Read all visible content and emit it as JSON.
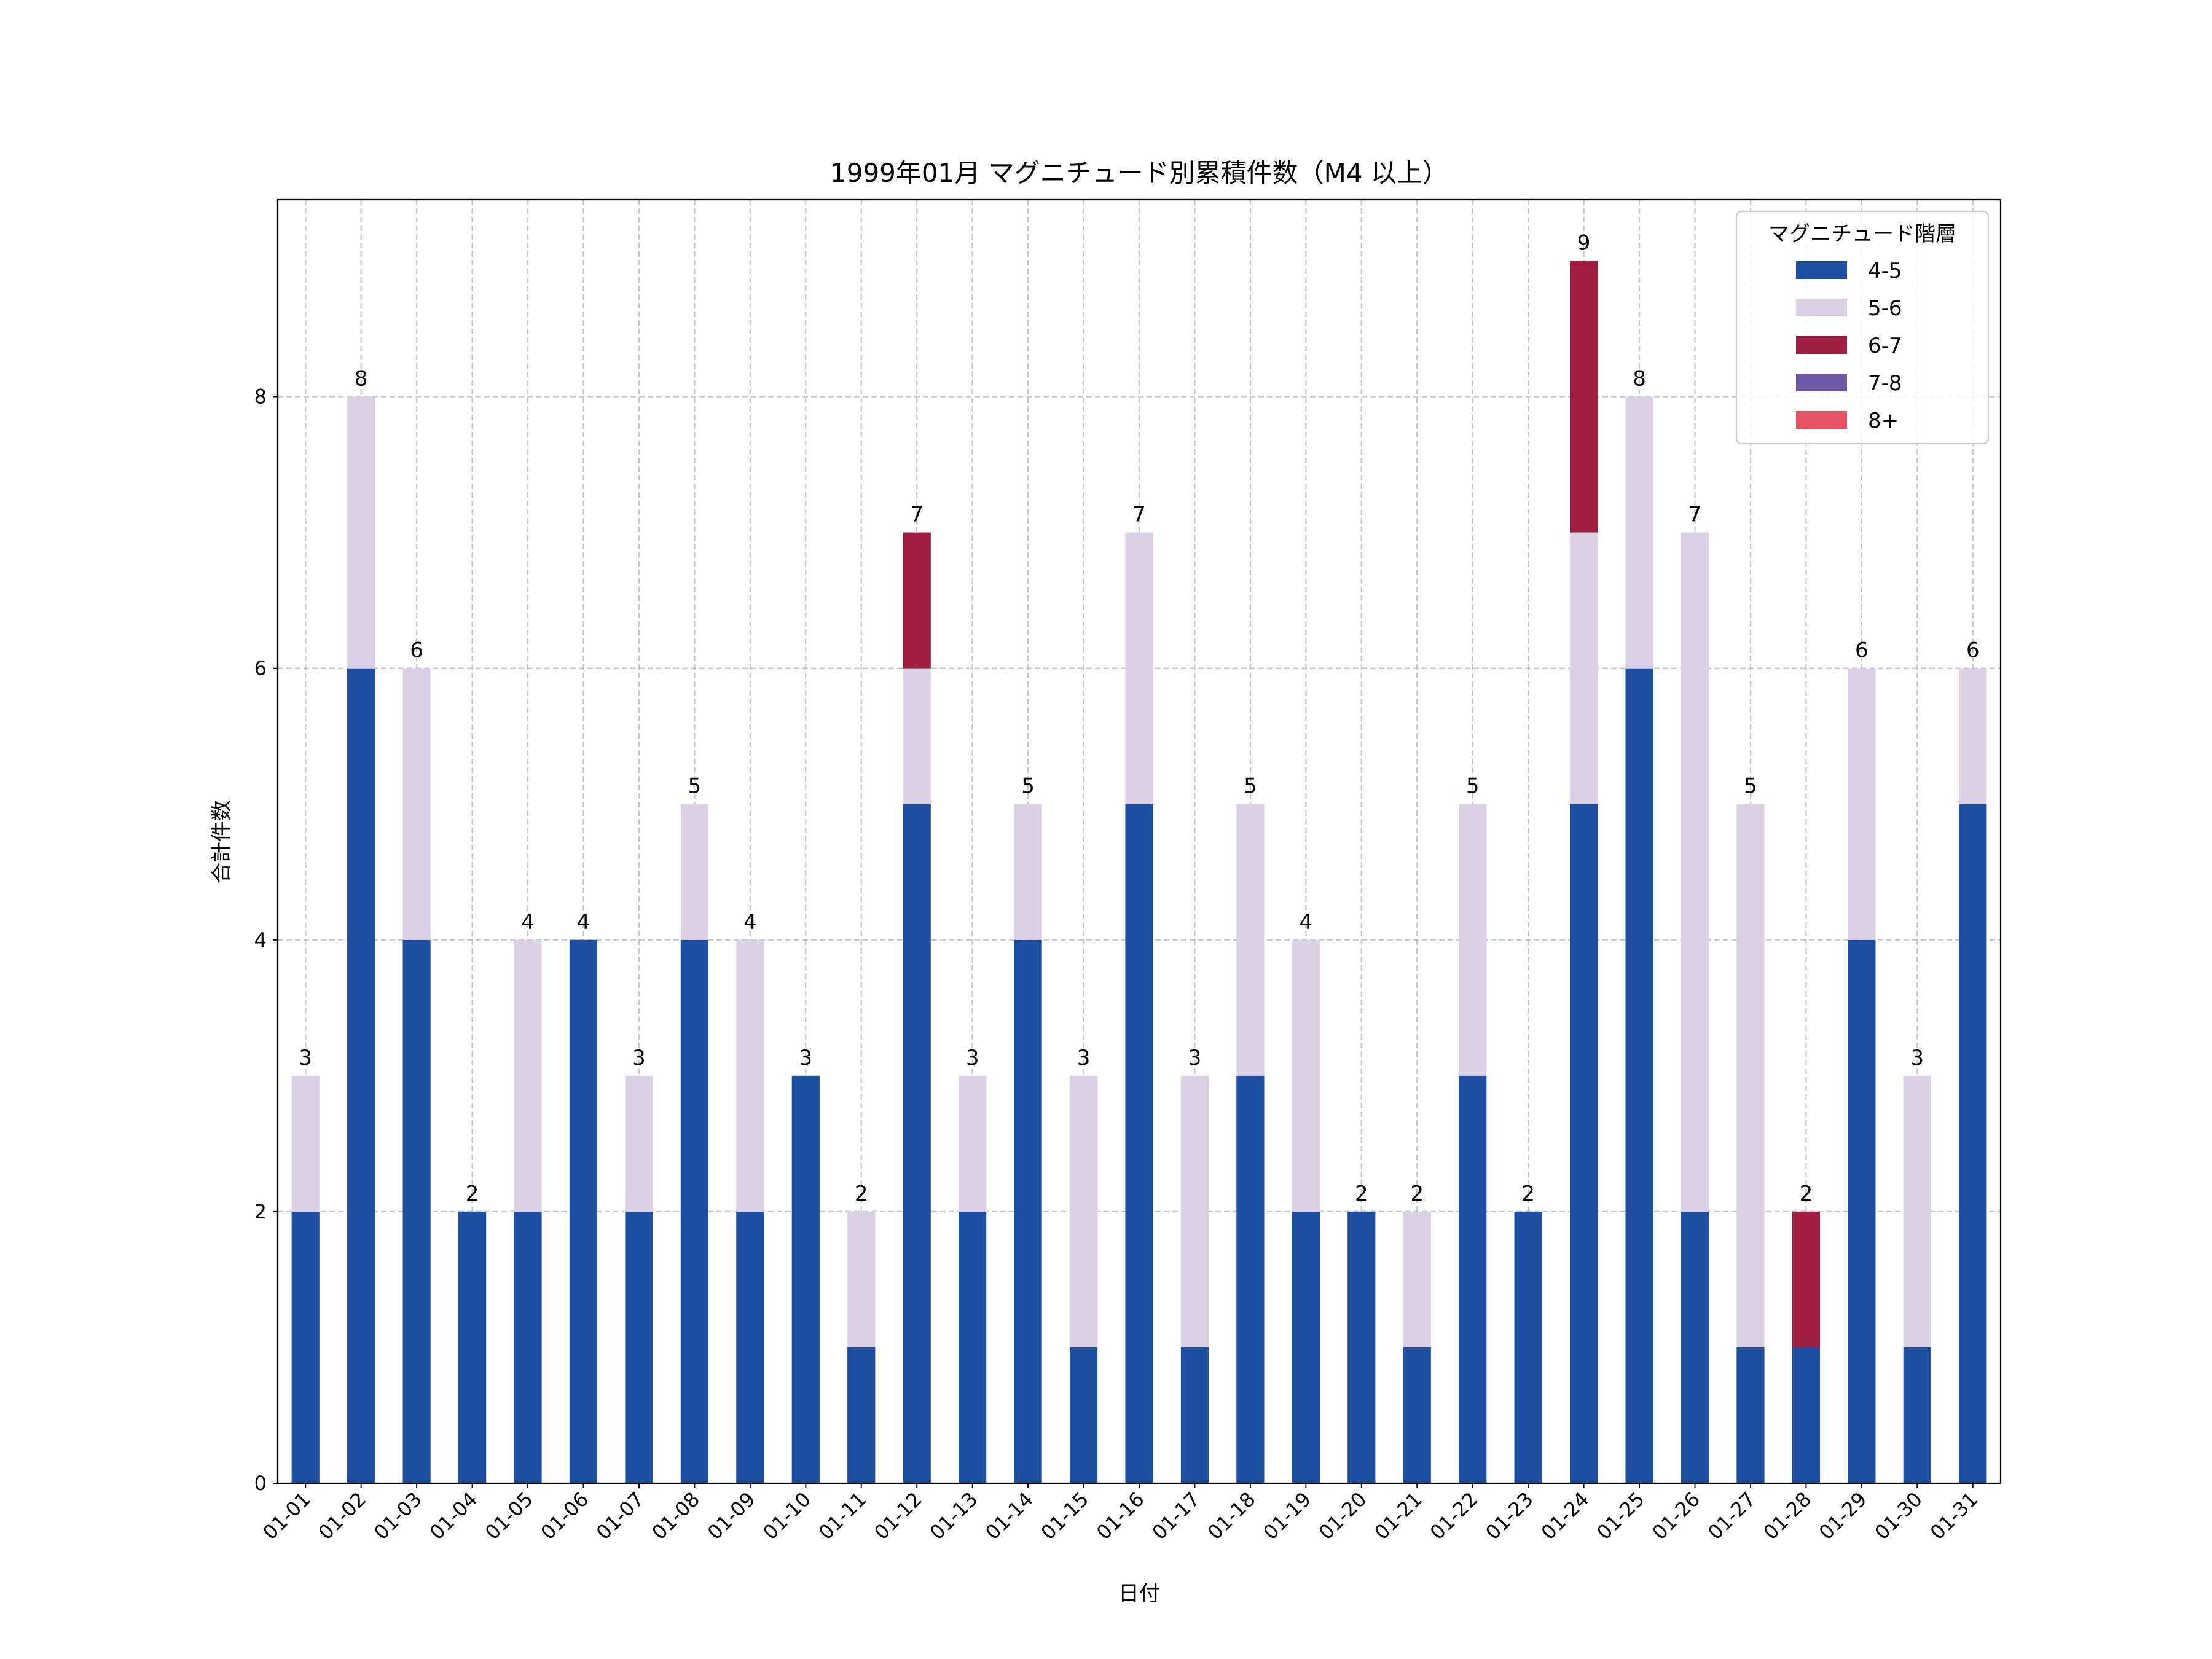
{
  "chart_data": {
    "type": "bar",
    "stacked": true,
    "title": "1999年01月 マグニチュード別累積件数（M4 以上）",
    "xlabel": "日付",
    "ylabel": "合計件数",
    "ylim": [
      0,
      9.45
    ],
    "yticks": [
      0,
      2,
      4,
      6,
      8
    ],
    "grid": true,
    "legend": {
      "title": "マグニチュード階層",
      "placement": "top-right"
    },
    "categories": [
      "01-01",
      "01-02",
      "01-03",
      "01-04",
      "01-05",
      "01-06",
      "01-07",
      "01-08",
      "01-09",
      "01-10",
      "01-11",
      "01-12",
      "01-13",
      "01-14",
      "01-15",
      "01-16",
      "01-17",
      "01-18",
      "01-19",
      "01-20",
      "01-21",
      "01-22",
      "01-23",
      "01-24",
      "01-25",
      "01-26",
      "01-27",
      "01-28",
      "01-29",
      "01-30",
      "01-31"
    ],
    "series": [
      {
        "name": "4-5",
        "color": "#1f4fa0",
        "values": [
          2,
          6,
          4,
          2,
          2,
          4,
          2,
          4,
          2,
          3,
          1,
          5,
          2,
          4,
          1,
          5,
          1,
          3,
          2,
          2,
          1,
          3,
          2,
          5,
          6,
          2,
          1,
          1,
          4,
          1,
          5
        ]
      },
      {
        "name": "5-6",
        "color": "#dcd0e5",
        "values": [
          1,
          2,
          2,
          0,
          2,
          0,
          1,
          1,
          2,
          0,
          1,
          1,
          1,
          1,
          2,
          2,
          2,
          2,
          2,
          0,
          1,
          2,
          0,
          2,
          2,
          5,
          4,
          0,
          2,
          2,
          1
        ]
      },
      {
        "name": "6-7",
        "color": "#a01f43",
        "values": [
          0,
          0,
          0,
          0,
          0,
          0,
          0,
          0,
          0,
          0,
          0,
          1,
          0,
          0,
          0,
          0,
          0,
          0,
          0,
          0,
          0,
          0,
          0,
          2,
          0,
          0,
          0,
          1,
          0,
          0,
          0
        ]
      },
      {
        "name": "7-8",
        "color": "#7058a3",
        "values": [
          0,
          0,
          0,
          0,
          0,
          0,
          0,
          0,
          0,
          0,
          0,
          0,
          0,
          0,
          0,
          0,
          0,
          0,
          0,
          0,
          0,
          0,
          0,
          0,
          0,
          0,
          0,
          0,
          0,
          0,
          0
        ]
      },
      {
        "name": "8+",
        "color": "#e85466",
        "values": [
          0,
          0,
          0,
          0,
          0,
          0,
          0,
          0,
          0,
          0,
          0,
          0,
          0,
          0,
          0,
          0,
          0,
          0,
          0,
          0,
          0,
          0,
          0,
          0,
          0,
          0,
          0,
          0,
          0,
          0,
          0
        ]
      }
    ],
    "totals": [
      3,
      8,
      6,
      2,
      4,
      4,
      3,
      5,
      4,
      3,
      2,
      7,
      3,
      5,
      3,
      7,
      3,
      5,
      4,
      2,
      2,
      5,
      2,
      9,
      8,
      7,
      5,
      2,
      6,
      3,
      6
    ]
  }
}
